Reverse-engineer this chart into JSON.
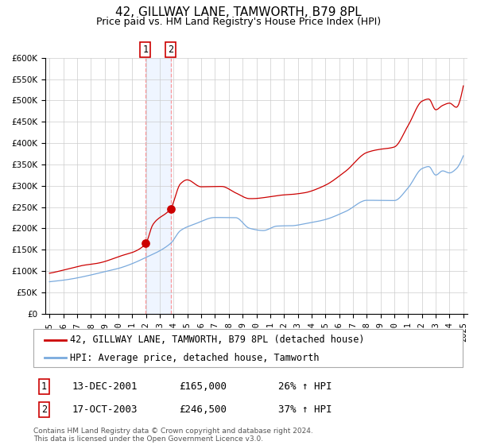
{
  "title": "42, GILLWAY LANE, TAMWORTH, B79 8PL",
  "subtitle": "Price paid vs. HM Land Registry's House Price Index (HPI)",
  "ylim": [
    0,
    600000
  ],
  "yticks": [
    0,
    50000,
    100000,
    150000,
    200000,
    250000,
    300000,
    350000,
    400000,
    450000,
    500000,
    550000,
    600000
  ],
  "xlim_start": 1994.7,
  "xlim_end": 2025.3,
  "sale1_date": 2001.95,
  "sale1_price": 165000,
  "sale1_label": "13-DEC-2001",
  "sale1_hpi": "26% ↑ HPI",
  "sale2_date": 2003.79,
  "sale2_price": 246500,
  "sale2_label": "17-OCT-2003",
  "sale2_hpi": "37% ↑ HPI",
  "red_color": "#cc0000",
  "blue_color": "#7aaadd",
  "shade_color": "#ddeeff",
  "grid_color": "#cccccc",
  "legend_entry1": "42, GILLWAY LANE, TAMWORTH, B79 8PL (detached house)",
  "legend_entry2": "HPI: Average price, detached house, Tamworth",
  "footnote": "Contains HM Land Registry data © Crown copyright and database right 2024.\nThis data is licensed under the Open Government Licence v3.0.",
  "title_fontsize": 11,
  "subtitle_fontsize": 9,
  "tick_fontsize": 7.5,
  "legend_fontsize": 8.5,
  "footnote_fontsize": 6.5
}
